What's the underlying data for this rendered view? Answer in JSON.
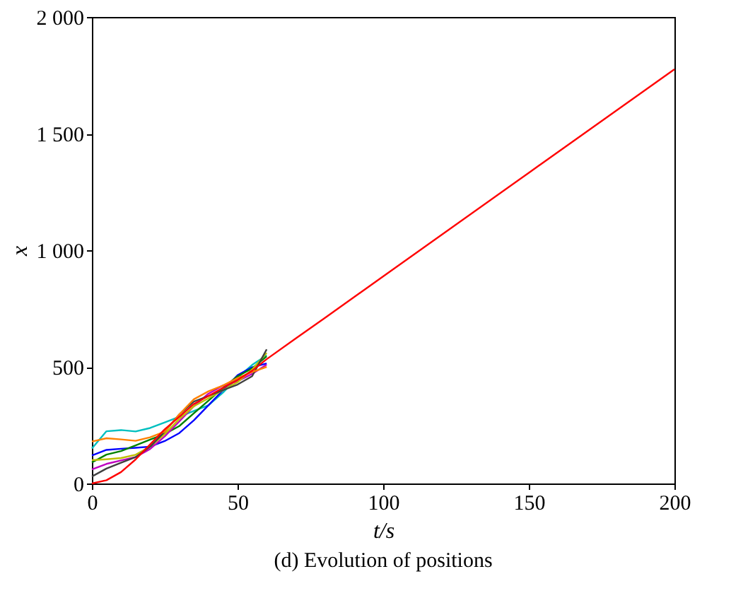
{
  "chart_data": {
    "type": "line",
    "title": "(d) Evolution of positions",
    "xlabel": "t/s",
    "ylabel": "x",
    "x": [
      0,
      5,
      10,
      15,
      20,
      25,
      30,
      35,
      40,
      45,
      50,
      55,
      60,
      70,
      80,
      100,
      150,
      200
    ],
    "series": [
      {
        "color": "#00bfbf",
        "values": [
          150,
          224,
          229,
          223,
          238,
          262,
          286,
          311,
          335,
          390,
          454,
          508,
          550,
          null,
          null,
          null,
          null,
          null
        ]
      },
      {
        "color": "#0000ff",
        "values": [
          120,
          144,
          149,
          153,
          158,
          182,
          216,
          271,
          335,
          400,
          464,
          498,
          515,
          null,
          null,
          null,
          null,
          null
        ]
      },
      {
        "color": "#008000",
        "values": [
          90,
          124,
          139,
          163,
          188,
          212,
          246,
          301,
          355,
          410,
          459,
          493,
          545,
          null,
          null,
          null,
          null,
          null
        ]
      },
      {
        "color": "#bf00bf",
        "values": [
          60,
          84,
          99,
          113,
          148,
          202,
          266,
          331,
          385,
          420,
          438,
          470,
          510,
          null,
          null,
          null,
          null,
          null
        ]
      },
      {
        "color": "#bfbf00",
        "values": [
          100,
          104,
          109,
          123,
          158,
          212,
          276,
          331,
          365,
          400,
          434,
          488,
          560,
          null,
          null,
          null,
          null,
          null
        ]
      },
      {
        "color": "#404040",
        "values": [
          30,
          64,
          89,
          113,
          158,
          222,
          296,
          351,
          375,
          400,
          424,
          460,
          575,
          null,
          null,
          null,
          null,
          null
        ]
      },
      {
        "color": "#ff8000",
        "values": [
          180,
          194,
          189,
          183,
          198,
          222,
          296,
          361,
          395,
          420,
          452,
          478,
          500,
          null,
          null,
          null,
          null,
          null
        ]
      },
      {
        "color": "#ff0000",
        "values": [
          0,
          14,
          49,
          103,
          168,
          232,
          286,
          341,
          375,
          410,
          444,
          483,
          533,
          622,
          710,
          888,
          1332,
          1776
        ]
      }
    ],
    "xlim": [
      0,
      200
    ],
    "xticks": [
      0,
      50,
      100,
      150,
      200
    ],
    "ylim": [
      0,
      2000
    ],
    "yticks": [
      0,
      500,
      {
        "value": 1000,
        "label": "1 000"
      },
      {
        "value": 1500,
        "label": "1 500"
      },
      {
        "value": 2000,
        "label": "2 000"
      }
    ],
    "grid": false,
    "legend": false,
    "marker": "none",
    "line_style": "solid"
  }
}
